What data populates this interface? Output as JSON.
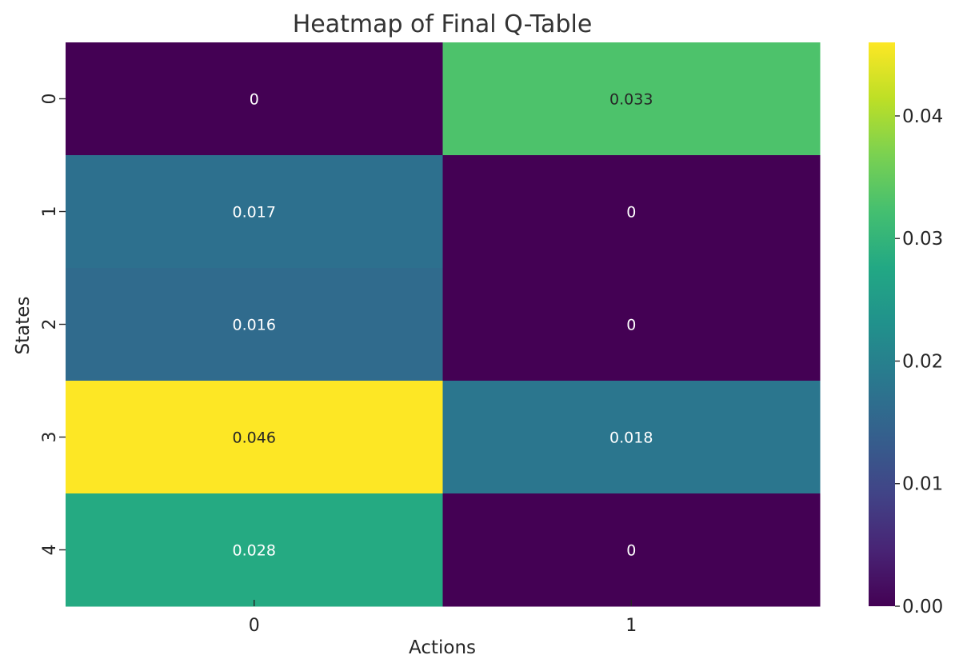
{
  "chart_data": {
    "type": "heatmap",
    "title": "Heatmap of Final Q-Table",
    "xlabel": "Actions",
    "ylabel": "States",
    "x_categories": [
      "0",
      "1"
    ],
    "y_categories": [
      "0",
      "1",
      "2",
      "3",
      "4"
    ],
    "values": [
      [
        0.0,
        0.033
      ],
      [
        0.017,
        0.0
      ],
      [
        0.016,
        0.0
      ],
      [
        0.046,
        0.018
      ],
      [
        0.028,
        0.0
      ]
    ],
    "annotations": [
      [
        "0",
        "0.033"
      ],
      [
        "0.017",
        "0"
      ],
      [
        "0.016",
        "0"
      ],
      [
        "0.046",
        "0.018"
      ],
      [
        "0.028",
        "0"
      ]
    ],
    "colormap": "viridis",
    "colorbar": {
      "range": [
        0.0,
        0.046
      ],
      "ticks": [
        0.0,
        0.01,
        0.02,
        0.03,
        0.04
      ],
      "tick_labels": [
        "0.00",
        "0.01",
        "0.02",
        "0.03",
        "0.04"
      ]
    }
  }
}
